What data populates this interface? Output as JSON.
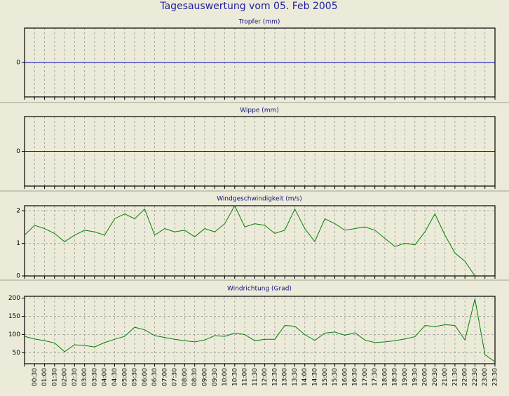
{
  "title": "Tagesauswertung vom 05. Feb 2005",
  "chart_data": [
    {
      "type": "line",
      "title": "Tropfer (mm)",
      "color": "#0000c0",
      "ylim": [
        -1,
        1
      ],
      "yticks": [
        0
      ],
      "grid": true,
      "values": [
        0,
        0,
        0,
        0,
        0,
        0,
        0,
        0,
        0,
        0,
        0,
        0,
        0,
        0,
        0,
        0,
        0,
        0,
        0,
        0,
        0,
        0,
        0,
        0,
        0,
        0,
        0,
        0,
        0,
        0,
        0,
        0,
        0,
        0,
        0,
        0,
        0,
        0,
        0,
        0,
        0,
        0,
        0,
        0,
        0,
        0,
        0,
        0
      ]
    },
    {
      "type": "line",
      "title": "Wippe (mm)",
      "color": "#0000c0",
      "ylim": [
        -1,
        1
      ],
      "yticks": [
        0
      ],
      "grid": true,
      "values": [
        0,
        0,
        0,
        0,
        0,
        0,
        0,
        0,
        0,
        0,
        0,
        0,
        0,
        0,
        0,
        0,
        0,
        0,
        0,
        0,
        0,
        0,
        0,
        0,
        0,
        0,
        0,
        0,
        0,
        0,
        0,
        0,
        0,
        0,
        0,
        0,
        0,
        0,
        0,
        0,
        0,
        0,
        0,
        0,
        0,
        0,
        0,
        0
      ]
    },
    {
      "type": "line",
      "title": "Windgeschwindigkeit (m/s)",
      "color": "#008000",
      "ylim": [
        0,
        2.15
      ],
      "yticks": [
        0,
        1,
        2
      ],
      "grid": true,
      "values": [
        1.25,
        1.55,
        1.45,
        1.3,
        1.05,
        1.25,
        1.4,
        1.35,
        1.25,
        1.75,
        1.9,
        1.75,
        2.05,
        1.25,
        1.45,
        1.35,
        1.4,
        1.2,
        1.45,
        1.35,
        1.6,
        2.15,
        1.5,
        1.6,
        1.55,
        1.3,
        1.4,
        2.05,
        1.45,
        1.05,
        1.75,
        1.6,
        1.4,
        1.45,
        1.5,
        1.4,
        1.15,
        0.9,
        1.0,
        0.95,
        1.35,
        1.9,
        1.25,
        0.7,
        0.45,
        0.0,
        null,
        null
      ]
    },
    {
      "type": "line",
      "title": "Windrichtung (Grad)",
      "color": "#008000",
      "ylim": [
        20,
        205
      ],
      "yticks": [
        50,
        100,
        150,
        200
      ],
      "grid": true,
      "categories": [
        null,
        "00:30",
        "01:00",
        "01:30",
        "02:00",
        "02:30",
        "03:00",
        "03:30",
        "04:00",
        "04:30",
        "05:00",
        "05:30",
        "06:00",
        "06:30",
        "07:00",
        "07:30",
        "08:00",
        "08:30",
        "09:00",
        "09:30",
        "10:00",
        "10:30",
        "11:00",
        "11:30",
        "12:00",
        "12:30",
        "13:00",
        "13:30",
        "14:00",
        "14:30",
        "15:00",
        "15:30",
        "16:00",
        "16:30",
        "17:00",
        "17:30",
        "18:00",
        "18:30",
        "19:00",
        "19:30",
        "20:00",
        "20:30",
        "21:00",
        "21:30",
        "22:00",
        "22:30",
        "23:00",
        "23:30"
      ],
      "values": [
        95,
        88,
        83,
        77,
        53,
        72,
        70,
        66,
        78,
        87,
        95,
        120,
        113,
        97,
        92,
        87,
        83,
        80,
        85,
        97,
        95,
        104,
        100,
        83,
        87,
        87,
        125,
        123,
        100,
        84,
        104,
        107,
        98,
        105,
        85,
        78,
        80,
        83,
        88,
        94,
        125,
        122,
        127,
        125,
        85,
        198,
        45,
        25
      ]
    }
  ]
}
